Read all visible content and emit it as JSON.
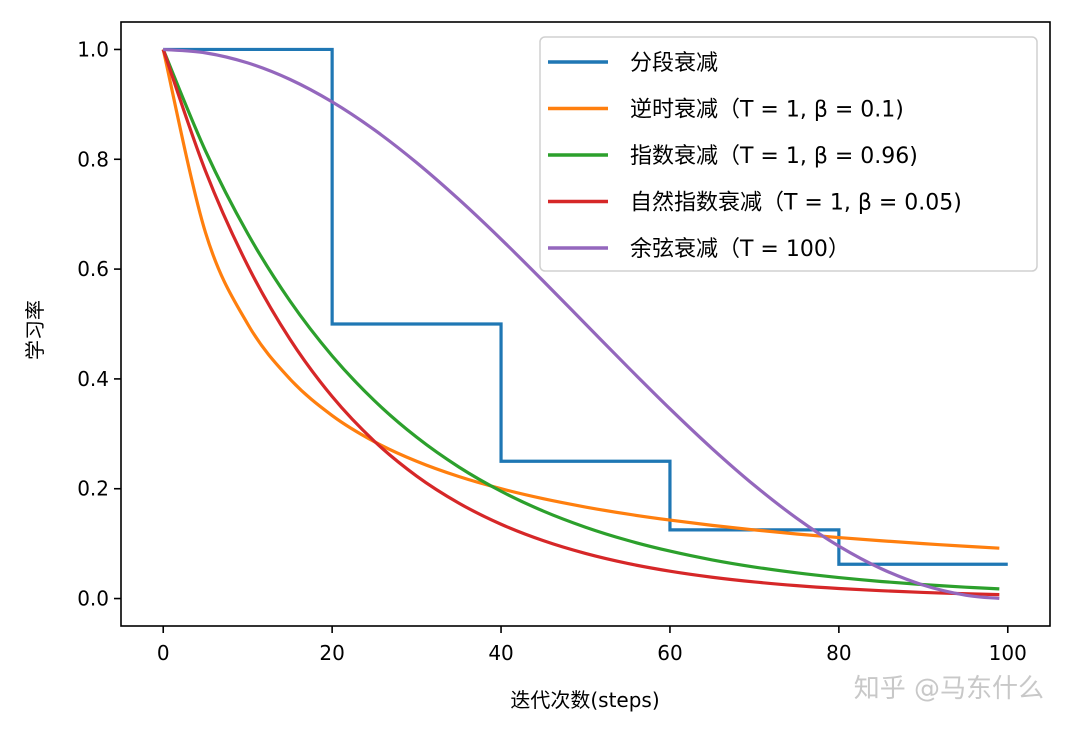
{
  "chart_data": {
    "type": "line",
    "title": "",
    "xlabel": "迭代次数(steps)",
    "ylabel": "学习率",
    "xlim": [
      -5,
      105
    ],
    "ylim": [
      -0.05,
      1.05
    ],
    "xticks": [
      0,
      20,
      40,
      60,
      80,
      100
    ],
    "xtick_labels": [
      "0",
      "20",
      "40",
      "60",
      "80",
      "100"
    ],
    "yticks": [
      0.0,
      0.2,
      0.4,
      0.6,
      0.8,
      1.0
    ],
    "ytick_labels": [
      "0.0",
      "0.2",
      "0.4",
      "0.6",
      "0.8",
      "1.0"
    ],
    "grid": false,
    "legend_position": "top-right",
    "series": [
      {
        "name": "分段衰减",
        "color": "#1f77b4",
        "step": true,
        "x": [
          0,
          20,
          40,
          60,
          80,
          100
        ],
        "y": [
          1.0,
          0.5,
          0.25,
          0.125,
          0.0625,
          0.0625
        ]
      },
      {
        "name": "逆时衰减（T = 1, β = 0.1)",
        "color": "#ff7f0e",
        "x": [
          0,
          5,
          10,
          15,
          20,
          25,
          30,
          35,
          40,
          45,
          50,
          55,
          60,
          65,
          70,
          75,
          80,
          85,
          90,
          95,
          99
        ],
        "y": [
          1,
          0.6667,
          0.5,
          0.4,
          0.3333,
          0.2857,
          0.25,
          0.2222,
          0.2,
          0.1818,
          0.1667,
          0.1538,
          0.1429,
          0.1333,
          0.125,
          0.1176,
          0.1111,
          0.1053,
          0.1,
          0.0952,
          0.0917
        ]
      },
      {
        "name": "指数衰减（T = 1, β = 0.96)",
        "color": "#2ca02c",
        "x": [
          0,
          5,
          10,
          15,
          20,
          25,
          30,
          35,
          40,
          45,
          50,
          55,
          60,
          65,
          70,
          75,
          80,
          85,
          90,
          95,
          99
        ],
        "y": [
          1,
          0.8154,
          0.6648,
          0.5421,
          0.442,
          0.3604,
          0.2939,
          0.2396,
          0.1954,
          0.1593,
          0.1299,
          0.1059,
          0.0864,
          0.0704,
          0.0574,
          0.0468,
          0.0382,
          0.0311,
          0.0254,
          0.0207,
          0.0176
        ]
      },
      {
        "name": "自然指数衰减（T = 1, β = 0.05)",
        "color": "#d62728",
        "x": [
          0,
          5,
          10,
          15,
          20,
          25,
          30,
          35,
          40,
          45,
          50,
          55,
          60,
          65,
          70,
          75,
          80,
          85,
          90,
          95,
          99
        ],
        "y": [
          1,
          0.7788,
          0.6065,
          0.4724,
          0.3679,
          0.2865,
          0.2231,
          0.1738,
          0.1353,
          0.1054,
          0.0821,
          0.0639,
          0.0498,
          0.0388,
          0.0302,
          0.0235,
          0.0183,
          0.0143,
          0.0111,
          0.0087,
          0.0071
        ]
      },
      {
        "name": "余弦衰减（T = 100）",
        "color": "#9467bd",
        "x": [
          0,
          5,
          10,
          15,
          20,
          25,
          30,
          35,
          40,
          45,
          50,
          55,
          60,
          65,
          70,
          75,
          80,
          85,
          90,
          95,
          99
        ],
        "y": [
          1,
          0.9938,
          0.9755,
          0.9455,
          0.9045,
          0.8536,
          0.7939,
          0.727,
          0.6545,
          0.5782,
          0.5,
          0.4218,
          0.3455,
          0.273,
          0.2061,
          0.1464,
          0.0955,
          0.0545,
          0.0245,
          0.0062,
          0.0003
        ]
      }
    ]
  },
  "watermark": "知乎 @马东什么"
}
